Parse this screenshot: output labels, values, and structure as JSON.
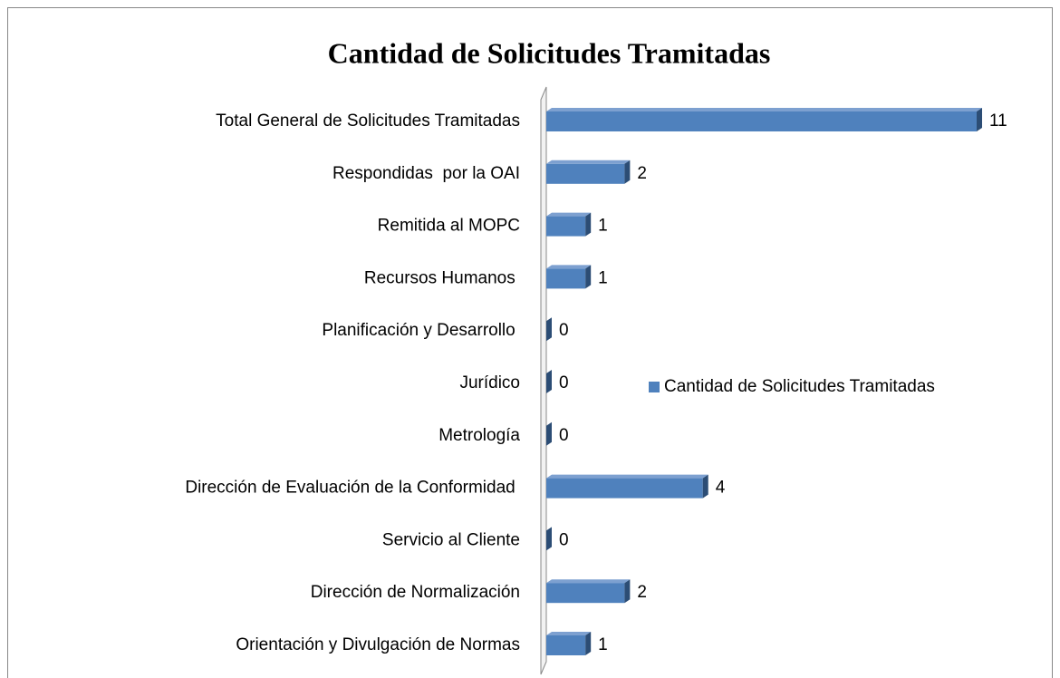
{
  "chart_data": {
    "type": "bar",
    "orientation": "horizontal",
    "title": "Cantidad de Solicitudes Tramitadas",
    "categories": [
      "Total General de Solicitudes Tramitadas",
      "Respondidas  por la OAI",
      "Remitida al MOPC",
      "Recursos Humanos ",
      "Planificación y Desarrollo ",
      "Jurídico",
      "Metrología",
      "Dirección de Evaluación de la Conformidad ",
      "Servicio al Cliente",
      "Dirección de Normalización",
      "Orientación y Divulgación de Normas"
    ],
    "series": [
      {
        "name": "Cantidad de Solicitudes Tramitadas",
        "color": "#4f81bd",
        "values": [
          11,
          2,
          1,
          1,
          0,
          0,
          0,
          4,
          0,
          2,
          1
        ]
      }
    ],
    "xlim": [
      0,
      11
    ],
    "legend": "right"
  }
}
